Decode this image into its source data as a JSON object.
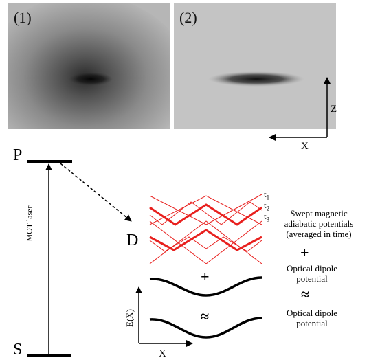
{
  "panels": [
    {
      "label": "(1)"
    },
    {
      "label": "(2)"
    }
  ],
  "axes_2d": {
    "vertical": "Z",
    "horizontal": "X"
  },
  "levels": {
    "upper": "P",
    "lower": "S",
    "dressed": "D"
  },
  "transition": {
    "laser": "MOT laser"
  },
  "time_labels": [
    "t",
    "t",
    "t"
  ],
  "time_subscripts": [
    "1",
    "2",
    "3"
  ],
  "energy_axes": {
    "vertical": "E(X)",
    "horizontal": "X"
  },
  "notes": {
    "swept": [
      "Swept magnetic",
      "adiabatic potentials",
      "(averaged in time)"
    ],
    "plus": "+",
    "dipole": [
      "Optical dipole",
      "potential"
    ],
    "approx": "≈",
    "dipole2": [
      "Optical dipole",
      "potential"
    ]
  },
  "curve_symbols": {
    "plus": "+",
    "approx": "≈"
  },
  "colors": {
    "potential_lines": "#e8201e",
    "ink": "#000000"
  }
}
